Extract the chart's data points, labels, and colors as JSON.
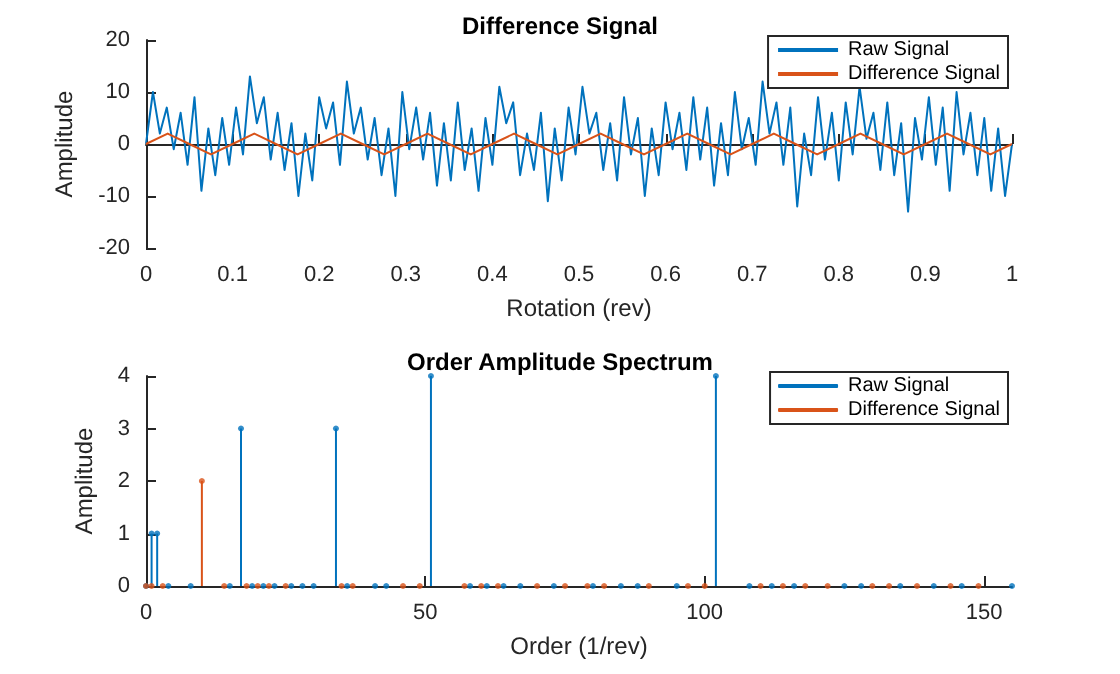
{
  "chart_data": [
    {
      "type": "line",
      "title": "Difference Signal",
      "xlabel": "Rotation (rev)",
      "ylabel": "Amplitude",
      "xlim": [
        0,
        1
      ],
      "xticks": [
        0,
        0.1,
        0.2,
        0.3,
        0.4,
        0.5,
        0.6,
        0.7,
        0.8,
        0.9,
        1
      ],
      "ylim": [
        -20,
        20
      ],
      "yticks": [
        -20,
        -10,
        0,
        10,
        20
      ],
      "legend": "top right",
      "series": [
        {
          "name": "Raw Signal",
          "color": "#0072bd",
          "x": [
            0,
            0.008,
            0.016,
            0.024,
            0.032,
            0.04,
            0.048,
            0.056,
            0.064,
            0.072,
            0.08,
            0.088,
            0.096,
            0.104,
            0.112,
            0.12,
            0.128,
            0.136,
            0.144,
            0.152,
            0.16,
            0.168,
            0.176,
            0.184,
            0.192,
            0.2,
            0.208,
            0.216,
            0.224,
            0.232,
            0.24,
            0.248,
            0.256,
            0.264,
            0.272,
            0.28,
            0.288,
            0.296,
            0.304,
            0.312,
            0.32,
            0.328,
            0.336,
            0.344,
            0.352,
            0.36,
            0.368,
            0.376,
            0.384,
            0.392,
            0.4,
            0.408,
            0.416,
            0.424,
            0.432,
            0.44,
            0.448,
            0.456,
            0.464,
            0.472,
            0.48,
            0.488,
            0.496,
            0.504,
            0.512,
            0.52,
            0.528,
            0.536,
            0.544,
            0.552,
            0.56,
            0.568,
            0.576,
            0.584,
            0.592,
            0.6,
            0.608,
            0.616,
            0.624,
            0.632,
            0.64,
            0.648,
            0.656,
            0.664,
            0.672,
            0.68,
            0.688,
            0.696,
            0.704,
            0.712,
            0.72,
            0.728,
            0.736,
            0.744,
            0.752,
            0.76,
            0.768,
            0.776,
            0.784,
            0.792,
            0.8,
            0.808,
            0.816,
            0.824,
            0.832,
            0.84,
            0.848,
            0.856,
            0.864,
            0.872,
            0.88,
            0.888,
            0.896,
            0.904,
            0.912,
            0.92,
            0.928,
            0.936,
            0.944,
            0.952,
            0.96,
            0.968,
            0.976,
            0.984,
            0.992,
            1
          ],
          "values": [
            0,
            10,
            2,
            7,
            -1,
            6,
            -4,
            9,
            -9,
            3,
            -6,
            5,
            -4,
            7,
            -2,
            13,
            4,
            9,
            -3,
            6,
            -5,
            4,
            -10,
            2,
            -7,
            9,
            3,
            8,
            -4,
            12,
            2,
            7,
            -3,
            5,
            -6,
            3,
            -10,
            10,
            -1,
            7,
            -3,
            6,
            -8,
            4,
            -7,
            8,
            -5,
            3,
            -9,
            5,
            -4,
            11,
            4,
            8,
            -6,
            2,
            -5,
            6,
            -11,
            3,
            -7,
            7,
            -2,
            11,
            2,
            6,
            -5,
            4,
            -7,
            9,
            -2,
            5,
            -10,
            3,
            -6,
            8,
            -1,
            6,
            -5,
            9,
            -3,
            7,
            -8,
            4,
            -6,
            10,
            -1,
            5,
            -4,
            12,
            2,
            8,
            -4,
            7,
            -12,
            2,
            -6,
            9,
            -3,
            6,
            -7,
            8,
            -2,
            11,
            1,
            6,
            -5,
            8,
            -6,
            4,
            -13,
            5,
            -3,
            9,
            -4,
            7,
            -9,
            10,
            -2,
            6,
            -6,
            5,
            -9,
            3,
            -10,
            0
          ]
        },
        {
          "name": "Difference Signal",
          "color": "#d95319",
          "x": [
            0,
            0.025,
            0.05,
            0.075,
            0.1,
            0.125,
            0.15,
            0.175,
            0.2,
            0.225,
            0.25,
            0.275,
            0.3,
            0.325,
            0.35,
            0.375,
            0.4,
            0.425,
            0.45,
            0.475,
            0.5,
            0.525,
            0.55,
            0.575,
            0.6,
            0.625,
            0.65,
            0.675,
            0.7,
            0.725,
            0.75,
            0.775,
            0.8,
            0.825,
            0.85,
            0.875,
            0.9,
            0.925,
            0.95,
            0.975,
            1
          ],
          "values": [
            0,
            2,
            0,
            -2,
            0,
            2,
            0,
            -2,
            0,
            2,
            0,
            -2,
            0,
            2,
            0,
            -2,
            0,
            2,
            0,
            -2,
            0,
            2,
            0,
            -2,
            0,
            2,
            0,
            -2,
            0,
            2,
            0,
            -2,
            0,
            2,
            0,
            -2,
            0,
            2,
            0,
            -2,
            0
          ]
        }
      ]
    },
    {
      "type": "lollipop",
      "title": "Order Amplitude Spectrum",
      "xlabel": "Order (1/rev)",
      "ylabel": "Amplitude",
      "xlim": [
        0,
        155
      ],
      "xticks": [
        0,
        50,
        100,
        150
      ],
      "ylim": [
        0,
        4
      ],
      "yticks": [
        0,
        1,
        2,
        3,
        4
      ],
      "legend": "top right",
      "marker": "circle",
      "series": [
        {
          "name": "Raw Signal",
          "color": "#0072bd",
          "x": [
            0,
            1,
            2,
            4,
            8,
            15,
            17,
            19,
            21,
            23,
            26,
            28,
            30,
            34,
            36,
            41,
            43,
            51,
            58,
            61,
            64,
            67,
            73,
            80,
            85,
            88,
            95,
            102,
            108,
            112,
            116,
            125,
            128,
            135,
            141,
            146,
            155
          ],
          "values": [
            0,
            1,
            1,
            0,
            0,
            0,
            3,
            0,
            0,
            0,
            0,
            0,
            0,
            3,
            0,
            0,
            0,
            4,
            0,
            0,
            0,
            0,
            0,
            0,
            0,
            0,
            0,
            4,
            0,
            0,
            0,
            0,
            0,
            0,
            0,
            0,
            0
          ]
        },
        {
          "name": "Difference Signal",
          "color": "#d95319",
          "x": [
            0,
            1,
            3,
            10,
            14,
            18,
            20,
            22,
            25,
            35,
            37,
            46,
            49,
            57,
            60,
            63,
            70,
            75,
            79,
            82,
            90,
            97,
            100,
            110,
            114,
            118,
            122,
            130,
            133,
            138,
            144,
            149
          ],
          "values": [
            0,
            0,
            0,
            2,
            0,
            0,
            0,
            0,
            0,
            0,
            0,
            0,
            0,
            0,
            0,
            0,
            0,
            0,
            0,
            0,
            0,
            0,
            0,
            0,
            0,
            0,
            0,
            0,
            0,
            0,
            0,
            0
          ]
        }
      ]
    }
  ]
}
